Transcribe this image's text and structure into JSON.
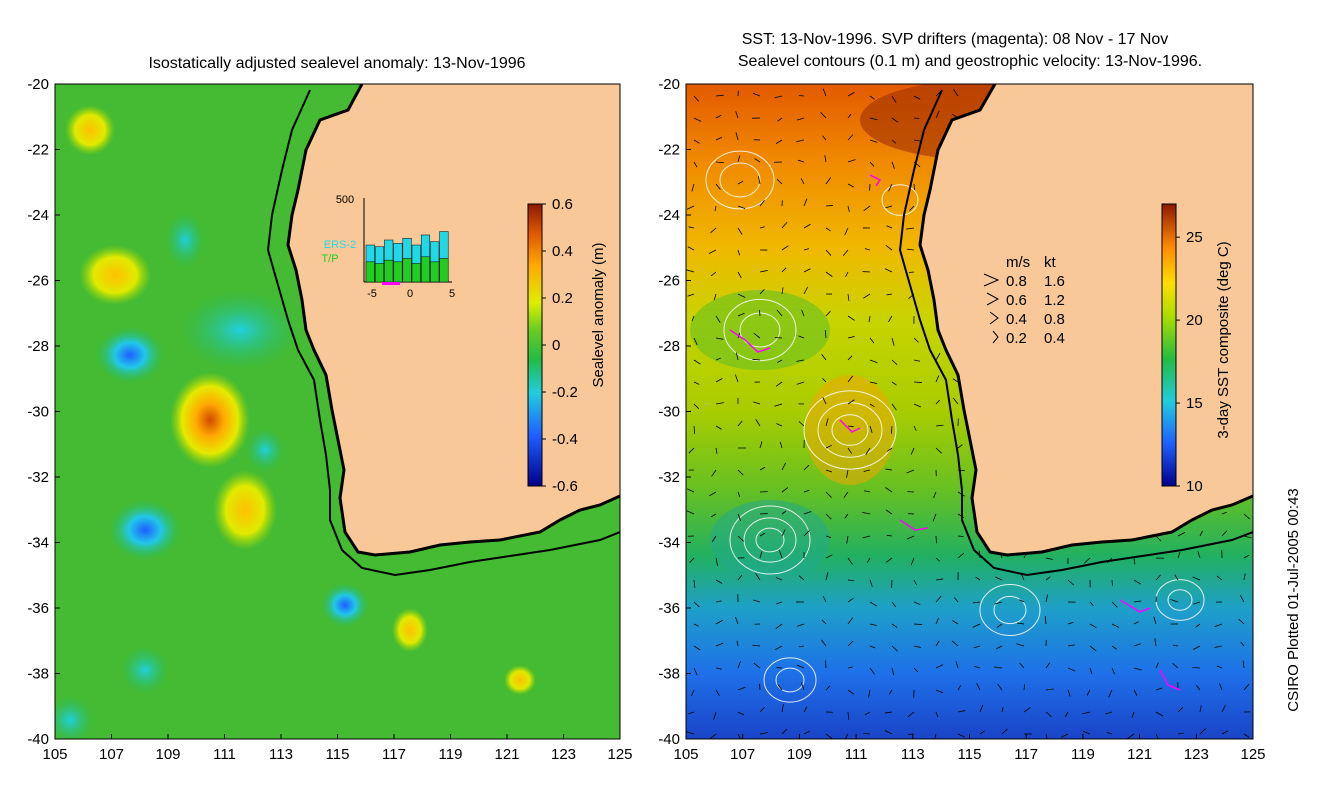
{
  "left_panel": {
    "title": "Isostatically adjusted sealevel anomaly: 13-Nov-1996",
    "lon_ticks": [
      "105",
      "107",
      "109",
      "111",
      "113",
      "115",
      "117",
      "119",
      "121",
      "123",
      "125"
    ],
    "lat_ticks": [
      "-20",
      "-22",
      "-24",
      "-26",
      "-28",
      "-30",
      "-32",
      "-34",
      "-36",
      "-38",
      "-40"
    ],
    "colorbar": {
      "label": "Sealevel anomaly (m)",
      "ticks": [
        "0.6",
        "0.4",
        "0.2",
        "0",
        "-0.2",
        "-0.4",
        "-0.6"
      ],
      "range": [
        -0.6,
        0.6
      ]
    },
    "inset": {
      "ymax_label": "500",
      "x_ticks": [
        "-5",
        "0",
        "5"
      ],
      "series_labels": [
        "ERS-2",
        "T/P"
      ],
      "colors": {
        "ers2": "#22d8e6",
        "tp": "#22cc22"
      },
      "ers2_counts": [
        220,
        210,
        250,
        230,
        260,
        220,
        280,
        240,
        300
      ],
      "tp_counts": [
        120,
        110,
        130,
        120,
        140,
        110,
        150,
        120,
        140
      ]
    }
  },
  "right_panel": {
    "title_line1": "SST: 13-Nov-1996. SVP drifters (magenta): 08 Nov - 17 Nov",
    "title_line2": "Sealevel contours (0.1 m) and geostrophic velocity: 13-Nov-1996.",
    "lon_ticks": [
      "105",
      "107",
      "109",
      "111",
      "113",
      "115",
      "117",
      "119",
      "121",
      "123",
      "125"
    ],
    "lat_ticks": [
      "-20",
      "-22",
      "-24",
      "-26",
      "-28",
      "-30",
      "-32",
      "-34",
      "-36",
      "-38",
      "-40"
    ],
    "colorbar": {
      "label": "3-day SST composite (deg C)",
      "ticks": [
        "25",
        "20",
        "15",
        "10"
      ],
      "range": [
        10,
        27
      ]
    },
    "velocity_legend": {
      "header_ms": "m/s",
      "header_kt": "kt",
      "rows": [
        {
          "ms": "0.8",
          "kt": "1.6"
        },
        {
          "ms": "0.6",
          "kt": "1.2"
        },
        {
          "ms": "0.4",
          "kt": "0.8"
        },
        {
          "ms": "0.2",
          "kt": "0.4"
        }
      ]
    }
  },
  "credit": "CSIRO Plotted 01-Jul-2005 00:43",
  "colors": {
    "land": "#f9c898",
    "coast": "#000000",
    "drifters": "#ff00ff",
    "contours": "#ffffff"
  }
}
